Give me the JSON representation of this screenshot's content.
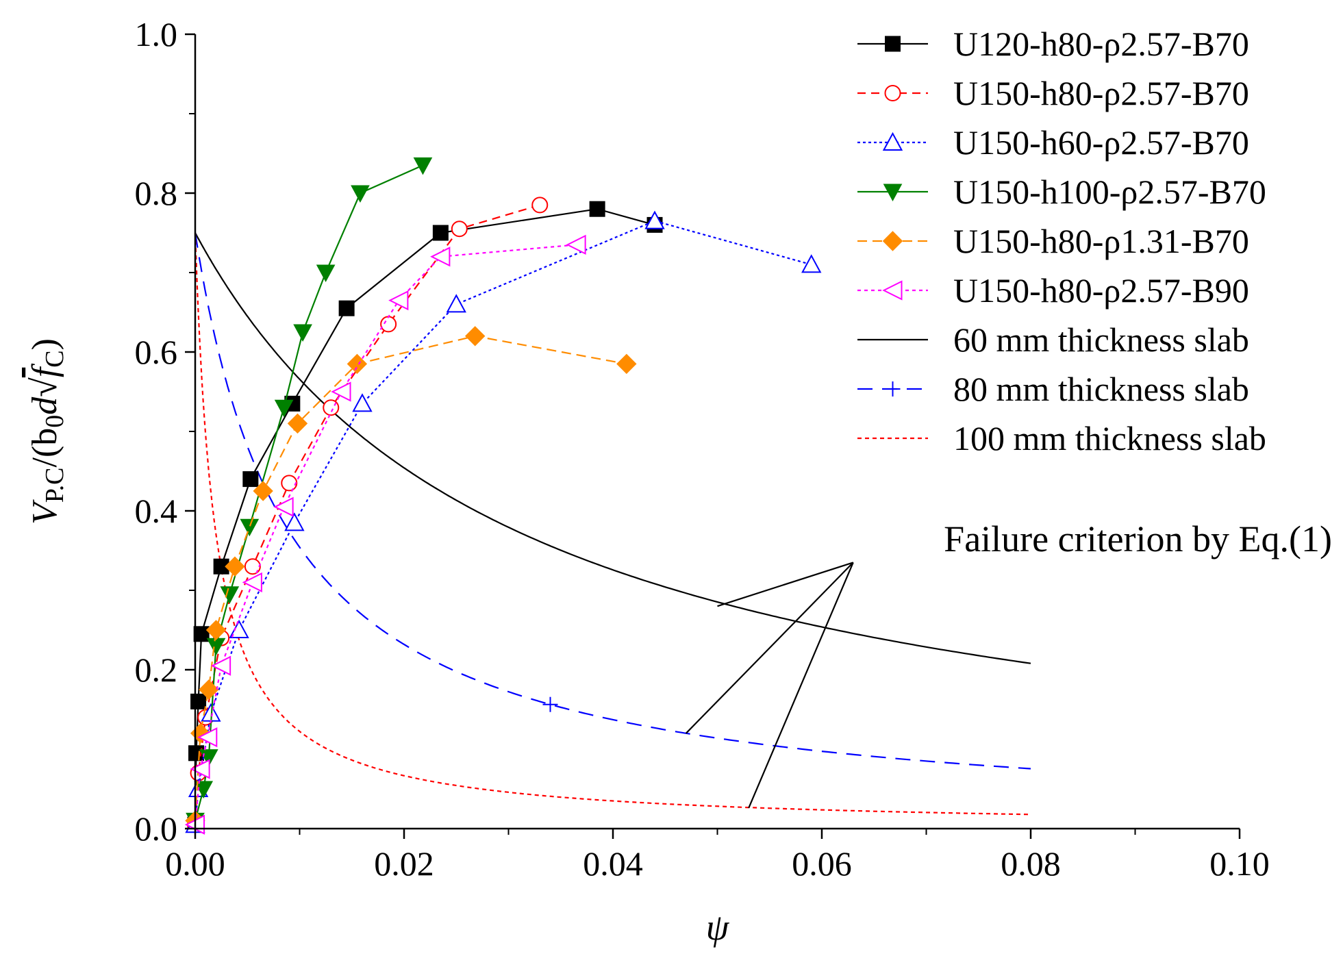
{
  "chart_data": {
    "type": "line",
    "title": "",
    "xlabel": "ψ",
    "ylabel": {
      "main": "V",
      "main_sub": "P.C",
      "mid": "/(b",
      "mid_sub": "0",
      "mid2": "d",
      "root_arg": "f",
      "root_sub": "C",
      "close": ")"
    },
    "xlim": [
      0,
      0.1
    ],
    "ylim": [
      0,
      1.0
    ],
    "xticks": [
      "0.00",
      "0.02",
      "0.04",
      "0.06",
      "0.08",
      "0.10"
    ],
    "xtick_values": [
      0,
      0.02,
      0.04,
      0.06,
      0.08,
      0.1
    ],
    "yticks": [
      "0.0",
      "0.2",
      "0.4",
      "0.6",
      "0.8",
      "1.0"
    ],
    "ytick_values": [
      0,
      0.2,
      0.4,
      0.6,
      0.8,
      1.0
    ],
    "legend_position": "top-right",
    "series": [
      {
        "name": "U120-h80-ρ2.57-B70",
        "color": "#000000",
        "dash": "none",
        "marker": "filled-square",
        "x": [
          0.0,
          0.0001,
          0.0003,
          0.0006,
          0.0025,
          0.0053,
          0.0093,
          0.0145,
          0.0235,
          0.0385,
          0.044
        ],
        "y": [
          0.005,
          0.095,
          0.16,
          0.245,
          0.33,
          0.44,
          0.535,
          0.655,
          0.75,
          0.78,
          0.76
        ]
      },
      {
        "name": "U150-h80-ρ2.57-B70",
        "color": "#ff0000",
        "dash": "12,8",
        "marker": "hollow-circle",
        "x": [
          0.0,
          0.0003,
          0.001,
          0.0025,
          0.0055,
          0.009,
          0.013,
          0.0185,
          0.0253,
          0.033
        ],
        "y": [
          0.005,
          0.07,
          0.14,
          0.24,
          0.33,
          0.435,
          0.53,
          0.635,
          0.755,
          0.785
        ]
      },
      {
        "name": "U150-h60-ρ2.57-B70",
        "color": "#0000ff",
        "dash": "4,4",
        "marker": "hollow-triangle-up",
        "x": [
          0.0,
          0.0003,
          0.0015,
          0.0042,
          0.0095,
          0.016,
          0.025,
          0.044,
          0.059
        ],
        "y": [
          0.005,
          0.05,
          0.145,
          0.25,
          0.385,
          0.535,
          0.66,
          0.765,
          0.71
        ]
      },
      {
        "name": "U150-h100-ρ2.57-B70",
        "color": "#008000",
        "dash": "none",
        "marker": "filled-triangle-down",
        "x": [
          0.0,
          0.0008,
          0.0013,
          0.002,
          0.0033,
          0.0052,
          0.0085,
          0.0103,
          0.0125,
          0.0158,
          0.0218
        ],
        "y": [
          0.01,
          0.05,
          0.09,
          0.23,
          0.295,
          0.38,
          0.53,
          0.625,
          0.7,
          0.8,
          0.835
        ]
      },
      {
        "name": "U150-h80-ρ1.31-B70",
        "color": "#ff8c00",
        "dash": "14,8",
        "marker": "filled-diamond",
        "x": [
          0.0,
          0.0005,
          0.0013,
          0.002,
          0.0038,
          0.0065,
          0.0098,
          0.0155,
          0.0268,
          0.0413
        ],
        "y": [
          0.01,
          0.12,
          0.175,
          0.25,
          0.33,
          0.425,
          0.51,
          0.585,
          0.62,
          0.585
        ]
      },
      {
        "name": "U150-h80-ρ2.57-B90",
        "color": "#ff00ff",
        "dash": "5,5",
        "marker": "hollow-triangle-left",
        "x": [
          0.0,
          0.0005,
          0.0012,
          0.0025,
          0.0055,
          0.0085,
          0.014,
          0.0195,
          0.0235,
          0.0365
        ],
        "y": [
          0.005,
          0.075,
          0.115,
          0.205,
          0.31,
          0.405,
          0.55,
          0.665,
          0.72,
          0.735
        ]
      }
    ],
    "criteria": [
      {
        "name": "60 mm thickness slab",
        "color": "#000000",
        "dash": "none",
        "coef": 0.75,
        "k": 0.0307,
        "marker": "none"
      },
      {
        "name": "80 mm thickness slab",
        "color": "#0000ff",
        "dash": "22,14",
        "coef": 0.75,
        "k": 0.00895,
        "marker": "plus"
      },
      {
        "name": "100 mm thickness slab",
        "color": "#ff0000",
        "dash": "6,5",
        "coef": 0.75,
        "k": 0.00195,
        "marker": "none"
      }
    ],
    "annotation": {
      "text": "Failure criterion by Eq.(1)",
      "anchor": [
        0.063,
        0.335
      ],
      "targets": [
        [
          0.05,
          0.28
        ],
        [
          0.047,
          0.12
        ],
        [
          0.053,
          0.026
        ]
      ]
    }
  }
}
